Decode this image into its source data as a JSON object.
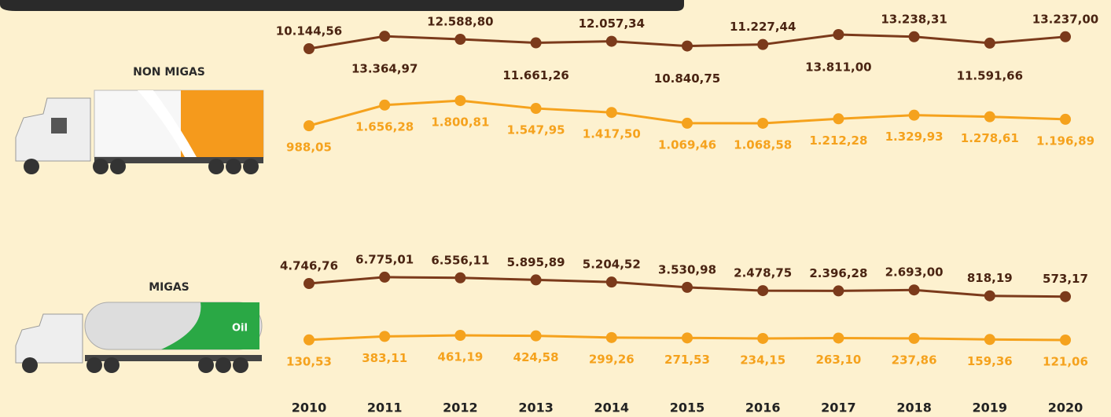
{
  "chart_data": {
    "type": "line",
    "categories": [
      "2010",
      "2011",
      "2012",
      "2013",
      "2014",
      "2015",
      "2016",
      "2017",
      "2018",
      "2019",
      "2020"
    ],
    "panels": [
      {
        "title": "NON MIGAS",
        "series": [
          {
            "color": "#7b3a1b",
            "ylim": [
              2400,
              18700
            ],
            "values": [
              10144.56,
              13364.97,
              12588.8,
              11661.26,
              12057.34,
              10840.75,
              11227.44,
              13811.0,
              13238.31,
              11591.66,
              13237.0
            ],
            "value_labels": [
              "10.144,56",
              "13.364,97",
              "12.588,80",
              "11.661,26",
              "12.057,34",
              "10.840,75",
              "11.227,44",
              "13.811,00",
              "13.238,31",
              "11.591,66",
              "13.237,00"
            ]
          },
          {
            "color": "#f5a21d",
            "ylim": [
              230,
              2260
            ],
            "values": [
              988.05,
              1656.28,
              1800.81,
              1547.95,
              1417.5,
              1069.46,
              1068.58,
              1212.28,
              1329.93,
              1278.61,
              1196.89
            ],
            "value_labels": [
              "988,05",
              "1.656,28",
              "1.800,81",
              "1.547,95",
              "1.417,50",
              "1.069,46",
              "1.068,58",
              "1.212,28",
              "1.329,93",
              "1.278,61",
              "1.196,89"
            ]
          }
        ]
      },
      {
        "title": "MIGAS",
        "series": [
          {
            "color": "#7b3a1b",
            "ylim": [
              -5000,
              12500
            ],
            "values": [
              4746.76,
              6775.01,
              6556.11,
              5895.89,
              5204.52,
              3530.98,
              2478.75,
              2396.28,
              2693.0,
              818.19,
              573.17
            ],
            "value_labels": [
              "4.746,76",
              "6.775,01",
              "6.556,11",
              "5.895,89",
              "5.204,52",
              "3.530,98",
              "2.478,75",
              "2.396,28",
              "2.693,00",
              "818,19",
              "573,17"
            ]
          },
          {
            "color": "#f5a21d",
            "ylim": [
              -850,
              1430
            ],
            "values": [
              130.53,
              383.11,
              461.19,
              424.58,
              299.26,
              271.53,
              234.15,
              263.1,
              237.86,
              159.36,
              121.06
            ],
            "value_labels": [
              "130,53",
              "383,11",
              "461,19",
              "424,58",
              "299,26",
              "271,53",
              "234,15",
              "263,10",
              "237,86",
              "159,36",
              "121,06"
            ]
          }
        ]
      }
    ]
  }
}
